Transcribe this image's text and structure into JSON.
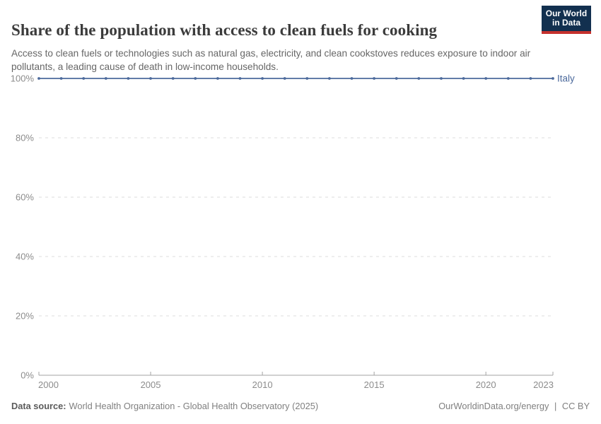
{
  "logo": {
    "line1": "Our World",
    "line2": "in Data",
    "bg_color": "#12304f",
    "stripe_color": "#c5312d"
  },
  "chart_data": {
    "type": "line",
    "title": "Share of the population with access to clean fuels for cooking",
    "subtitle": "Access to clean fuels or technologies such as natural gas, electricity, and clean cookstoves reduces exposure to indoor air pollutants, a leading cause of death in low-income households.",
    "x": [
      2000,
      2001,
      2002,
      2003,
      2004,
      2005,
      2006,
      2007,
      2008,
      2009,
      2010,
      2011,
      2012,
      2013,
      2014,
      2015,
      2016,
      2017,
      2018,
      2019,
      2020,
      2021,
      2022,
      2023
    ],
    "series": [
      {
        "name": "Italy",
        "color": "#4C6A9C",
        "values": [
          100,
          100,
          100,
          100,
          100,
          100,
          100,
          100,
          100,
          100,
          100,
          100,
          100,
          100,
          100,
          100,
          100,
          100,
          100,
          100,
          100,
          100,
          100,
          100
        ]
      }
    ],
    "xlim": [
      2000,
      2023
    ],
    "ylim": [
      0,
      100
    ],
    "xticks": [
      2000,
      2005,
      2010,
      2015,
      2020,
      2023
    ],
    "yticks": [
      0,
      20,
      40,
      60,
      80,
      100
    ],
    "ytick_suffix": "%",
    "grid": "horizontal-dashed",
    "legend_position": "end-of-line-label"
  },
  "footer": {
    "datasource_label": "Data source:",
    "datasource_text": "World Health Organization - Global Health Observatory (2025)",
    "link": "OurWorldinData.org/energy",
    "separator": "|",
    "license": "CC BY"
  },
  "colors": {
    "axis_text": "#8c8c8c",
    "gridline": "#dcdcdc",
    "axis_line": "#a3a3a3",
    "title_text": "#3b3b3b",
    "subtitle_text": "#666666"
  }
}
